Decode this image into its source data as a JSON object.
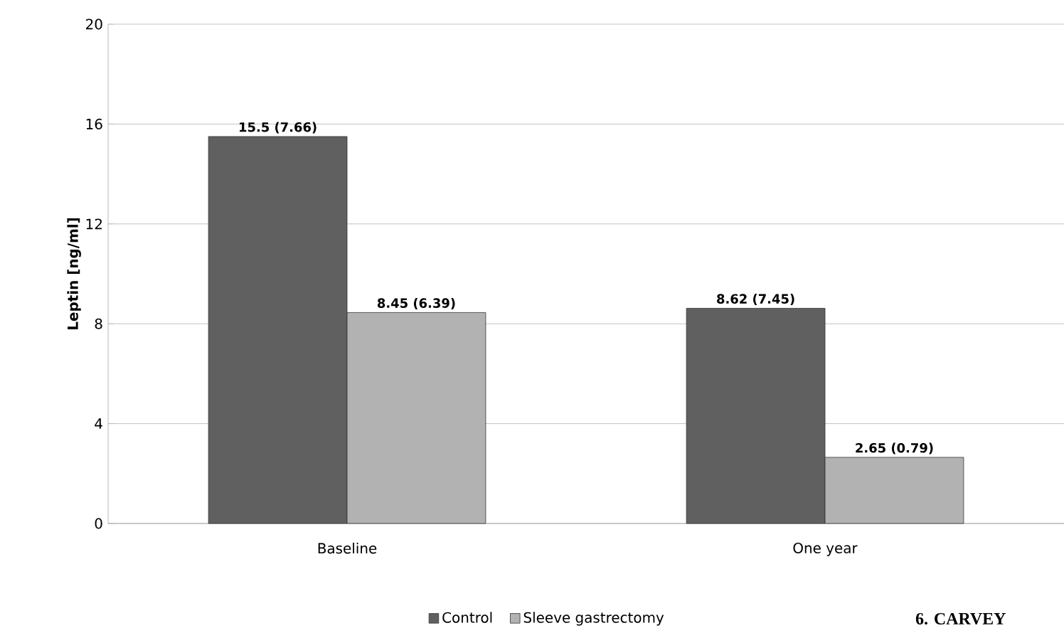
{
  "chart_data": {
    "type": "bar",
    "ylabel": "Leptin [ng/ml]",
    "categories": [
      "Baseline",
      "One year"
    ],
    "series": [
      {
        "name": "Control",
        "color": "#606060",
        "values": [
          15.5,
          8.62
        ],
        "value_labels": [
          "15.5 (7.66)",
          "8.62 (7.45)"
        ]
      },
      {
        "name": "Sleeve gastrectomy",
        "color": "#b2b2b2",
        "values": [
          8.45,
          2.65
        ],
        "value_labels": [
          "8.45 (6.39)",
          "2.65 (0.79)"
        ]
      }
    ],
    "ylim": [
      0,
      20
    ],
    "yticks": [
      0,
      4,
      8,
      12,
      16,
      20
    ],
    "grid": "y",
    "legend": "bottom",
    "annotations": [
      "6. CARVEY"
    ]
  }
}
